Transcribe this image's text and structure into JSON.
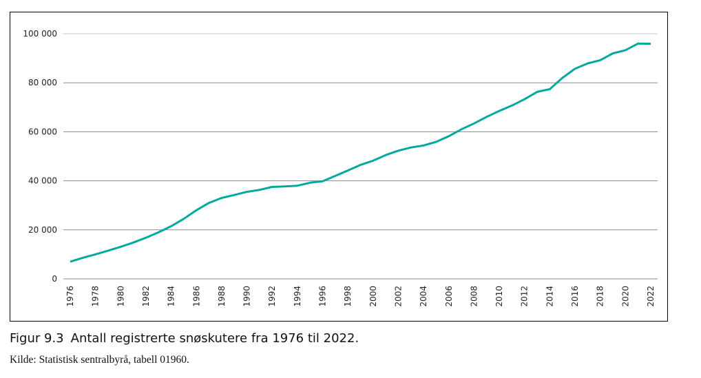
{
  "chart_data": {
    "type": "line",
    "title": "Antall registrerte snøskutere fra 1976 til 2022.",
    "figure_number": "Figur 9.3",
    "source": "Kilde: Statistisk sentralbyrå, tabell 01960.",
    "xlabel": "",
    "ylabel": "",
    "ylim": [
      0,
      100000
    ],
    "yticks": [
      0,
      20000,
      40000,
      60000,
      80000,
      100000
    ],
    "ytick_labels": [
      "0",
      "20 000",
      "40 000",
      "60 000",
      "80 000",
      "100 000"
    ],
    "xtick_labels": [
      "1976",
      "1978",
      "1980",
      "1982",
      "1984",
      "1986",
      "1988",
      "1990",
      "1992",
      "1994",
      "1996",
      "1998",
      "2000",
      "2002",
      "2004",
      "2006",
      "2008",
      "2010",
      "2012",
      "2014",
      "2016",
      "2018",
      "2020",
      "2022"
    ],
    "grid": true,
    "legend": "none",
    "color": "#00a99d",
    "x": [
      1976,
      1977,
      1978,
      1979,
      1980,
      1981,
      1982,
      1983,
      1984,
      1985,
      1986,
      1987,
      1988,
      1989,
      1990,
      1991,
      1992,
      1993,
      1994,
      1995,
      1996,
      1997,
      1998,
      1999,
      2000,
      2001,
      2002,
      2003,
      2004,
      2005,
      2006,
      2007,
      2008,
      2009,
      2010,
      2011,
      2012,
      2013,
      2014,
      2015,
      2016,
      2017,
      2018,
      2019,
      2020,
      2021,
      2022
    ],
    "series": [
      {
        "name": "Registrerte snøskutere",
        "values": [
          7000,
          8600,
          10000,
          11500,
          13100,
          14800,
          16800,
          19000,
          21500,
          24500,
          28000,
          31000,
          33000,
          34200,
          35500,
          36300,
          37500,
          37700,
          38000,
          39200,
          39800,
          42000,
          44200,
          46500,
          48200,
          50500,
          52300,
          53600,
          54400,
          55900,
          58200,
          61000,
          63400,
          66100,
          68500,
          70700,
          73300,
          76300,
          77400,
          82000,
          85700,
          87900,
          89200,
          92000,
          93300,
          96000,
          95900
        ]
      }
    ]
  }
}
